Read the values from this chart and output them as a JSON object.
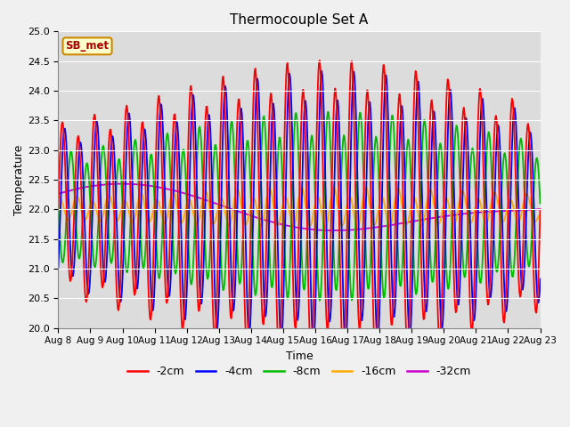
{
  "title": "Thermocouple Set A",
  "xlabel": "Time",
  "ylabel": "Temperature",
  "ylim": [
    20.0,
    25.0
  ],
  "yticks": [
    20.0,
    20.5,
    21.0,
    21.5,
    22.0,
    22.5,
    23.0,
    23.5,
    24.0,
    24.5,
    25.0
  ],
  "xtick_labels": [
    "Aug 8",
    "Aug 9",
    "Aug 10",
    "Aug 11",
    "Aug 12",
    "Aug 13",
    "Aug 14",
    "Aug 15",
    "Aug 16",
    "Aug 17",
    "Aug 18",
    "Aug 19",
    "Aug 20",
    "Aug 21",
    "Aug 22",
    "Aug 23"
  ],
  "series_labels": [
    "-2cm",
    "-4cm",
    "-8cm",
    "-16cm",
    "-32cm"
  ],
  "series_colors": [
    "#ff0000",
    "#0000ff",
    "#00bb00",
    "#ffaa00",
    "#cc00cc"
  ],
  "annotation_text": "SB_met",
  "annotation_color": "#aa0000",
  "annotation_bg": "#ffffcc",
  "annotation_border": "#cc8800",
  "background_color": "#dcdcdc",
  "fig_bg": "#f0f0f0",
  "num_days": 15,
  "points_per_day": 48,
  "base_temp": 22.0,
  "amp_2cm_base": 1.2,
  "amp_4cm_base": 1.1,
  "amp_8cm_base": 0.9,
  "amp_16cm_base": 0.45,
  "amp_32cm_base": 0.15,
  "phase_2cm": 0.0,
  "phase_4cm": 0.04,
  "phase_8cm": 0.15,
  "phase_16cm": 0.25,
  "phase_32cm": 0.35
}
